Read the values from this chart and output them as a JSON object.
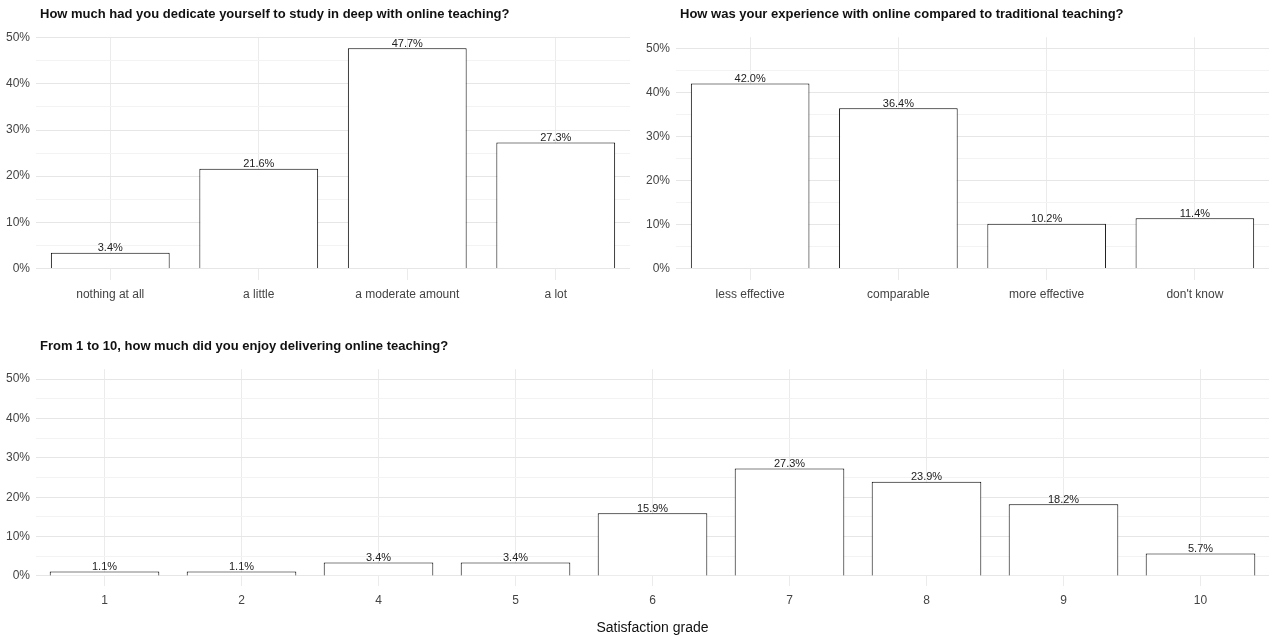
{
  "chart_data": [
    {
      "type": "bar",
      "title": "How much had you dedicate yourself to study in deep with online teaching?",
      "categories": [
        "nothing at all",
        "a little",
        "a moderate amount",
        "a lot"
      ],
      "values": [
        3.4,
        21.6,
        47.7,
        27.3
      ],
      "value_labels": [
        "3.4%",
        "21.6%",
        "47.7%",
        "27.3%"
      ],
      "color": "#ffffff",
      "ylim": [
        -2.4,
        50.1
      ],
      "yticks": [
        {
          "value": 0,
          "label": "0%"
        },
        {
          "value": 5,
          "label": null
        },
        {
          "value": 10,
          "label": "10%"
        },
        {
          "value": 15,
          "label": null
        },
        {
          "value": 20,
          "label": "20%"
        },
        {
          "value": 25,
          "label": null
        },
        {
          "value": 30,
          "label": "30%"
        },
        {
          "value": 35,
          "label": null
        },
        {
          "value": 40,
          "label": "40%"
        },
        {
          "value": 45,
          "label": null
        },
        {
          "value": 50,
          "label": "50%"
        }
      ],
      "grid": true,
      "legend": false
    },
    {
      "type": "bar",
      "title": "How was your experience with online compared to traditional teaching?",
      "categories": [
        "less effective",
        "comparable",
        "more effective",
        "don't know"
      ],
      "values": [
        42.0,
        36.4,
        10.2,
        11.4
      ],
      "value_labels": [
        "42.0%",
        "36.4%",
        "10.2%",
        "11.4%"
      ],
      "color": "#ffffff",
      "ylim": [
        -2.5,
        52.5
      ],
      "yticks": [
        {
          "value": 0,
          "label": "0%"
        },
        {
          "value": 5,
          "label": null
        },
        {
          "value": 10,
          "label": "10%"
        },
        {
          "value": 15,
          "label": null
        },
        {
          "value": 20,
          "label": "20%"
        },
        {
          "value": 25,
          "label": null
        },
        {
          "value": 30,
          "label": "30%"
        },
        {
          "value": 35,
          "label": null
        },
        {
          "value": 40,
          "label": "40%"
        },
        {
          "value": 45,
          "label": null
        },
        {
          "value": 50,
          "label": "50%"
        }
      ],
      "grid": true,
      "legend": false
    },
    {
      "type": "bar",
      "title": "From 1 to 10, how much did you enjoy delivering online teaching?",
      "xlabel": "Satisfaction grade",
      "categories": [
        "1",
        "2",
        "4",
        "5",
        "6",
        "7",
        "8",
        "9",
        "10"
      ],
      "values": [
        1.1,
        1.1,
        3.4,
        3.4,
        15.9,
        27.3,
        23.9,
        18.2,
        5.7
      ],
      "value_labels": [
        "1.1%",
        "1.1%",
        "3.4%",
        "3.4%",
        "15.9%",
        "27.3%",
        "23.9%",
        "18.2%",
        "5.7%"
      ],
      "color": "#ffffff",
      "ylim": [
        -2.5,
        52.5
      ],
      "yticks": [
        {
          "value": 0,
          "label": "0%"
        },
        {
          "value": 5,
          "label": null
        },
        {
          "value": 10,
          "label": "10%"
        },
        {
          "value": 15,
          "label": null
        },
        {
          "value": 20,
          "label": "20%"
        },
        {
          "value": 25,
          "label": null
        },
        {
          "value": 30,
          "label": "30%"
        },
        {
          "value": 35,
          "label": null
        },
        {
          "value": 40,
          "label": "40%"
        },
        {
          "value": 45,
          "label": null
        },
        {
          "value": 50,
          "label": "50%"
        }
      ],
      "grid": true,
      "legend": false
    }
  ]
}
